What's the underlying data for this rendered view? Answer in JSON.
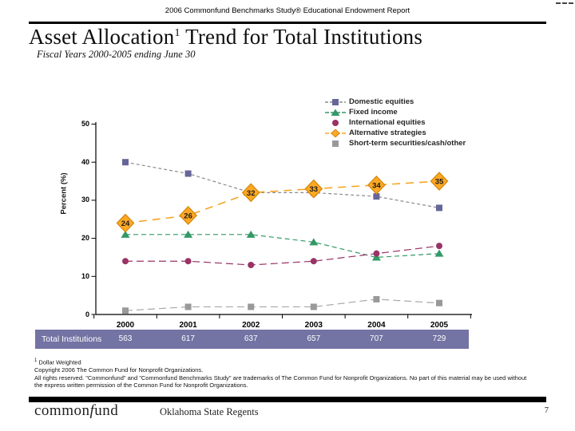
{
  "header": {
    "text": "2006 Commonfund Benchmarks Study® Educational Endowment Report"
  },
  "title": {
    "prefix": "Asset Allocation",
    "sup": "1",
    "suffix": " Trend for Total Institutions"
  },
  "subtitle": "Fiscal Years 2000-2005 ending June 30",
  "chart_data": {
    "type": "line",
    "title": "",
    "xlabel": "",
    "ylabel": "Percent (%)",
    "ylim": [
      0,
      50
    ],
    "yticks": [
      0,
      10,
      20,
      30,
      40,
      50
    ],
    "grid": false,
    "legend_position": "top-right",
    "categories": [
      "2000",
      "2001",
      "2002",
      "2003",
      "2004",
      "2005"
    ],
    "series": [
      {
        "name": "Domestic equities",
        "marker": "square",
        "color": "#666699",
        "line_color": "#8a8a8a",
        "dash": "4 3",
        "values": [
          40,
          37,
          32,
          32,
          31,
          28
        ]
      },
      {
        "name": "Fixed income",
        "marker": "triangle",
        "color": "#339966",
        "line_color": "#339966",
        "dash": "6 4",
        "values": [
          21,
          21,
          21,
          19,
          15,
          16
        ]
      },
      {
        "name": "International equities",
        "marker": "circle",
        "color": "#993366",
        "line_color": "#993366",
        "dash": "9 5",
        "values": [
          14,
          14,
          13,
          14,
          16,
          18
        ]
      },
      {
        "name": "Alternative strategies",
        "marker": "diamond",
        "color": "#FFA824",
        "stroke": "#D4880C",
        "line_color": "#F5A623",
        "dash": "10 7",
        "values": [
          24,
          26,
          32,
          33,
          34,
          35
        ],
        "data_labels": [
          "24",
          "26",
          "32",
          "33",
          "34",
          "35"
        ]
      },
      {
        "name": "Short-term securities/cash/other",
        "marker": "square",
        "color": "#999999",
        "line_color": "#a8a8a8",
        "dash": "9 5",
        "values": [
          1,
          2,
          2,
          2,
          4,
          3
        ]
      }
    ]
  },
  "totals_band": {
    "label": "Total Institutions",
    "values": [
      "563",
      "617",
      "637",
      "657",
      "707",
      "729"
    ],
    "color": "#7373A4"
  },
  "footnotes": {
    "sup": "1",
    "note1": " Dollar Weighted",
    "note2": "Copyright 2006 The Common Fund for Nonprofit Organizations.",
    "note3": "All rights reserved. \"Commonfund\" and \"Commonfund Benchmarks Study\" are trademarks of The Common Fund for Nonprofit Organizations. No part of this material may be used without the express written permission of the Common Fund for Nonprofit Organizations."
  },
  "footer": {
    "logo_pre": "common",
    "logo_f": "f",
    "logo_post": "und",
    "center": "Oklahoma State Regents",
    "page": "7"
  }
}
